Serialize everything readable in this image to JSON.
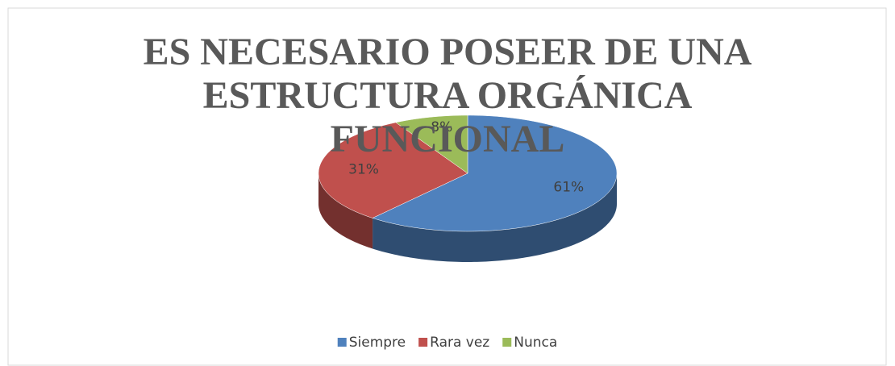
{
  "chart_data": {
    "type": "pie",
    "title": "ES NECESARIO POSEER DE UNA ESTRUCTURA ORGÁNICA FUNCIONAL",
    "categories": [
      "Siempre",
      "Rara vez",
      "Nunca"
    ],
    "values": [
      61,
      31,
      8
    ],
    "value_labels": [
      "61%",
      "31%",
      "8%"
    ],
    "colors": [
      "#4f81bd",
      "#c0504d",
      "#9bbb59"
    ],
    "legend": "bottom"
  }
}
